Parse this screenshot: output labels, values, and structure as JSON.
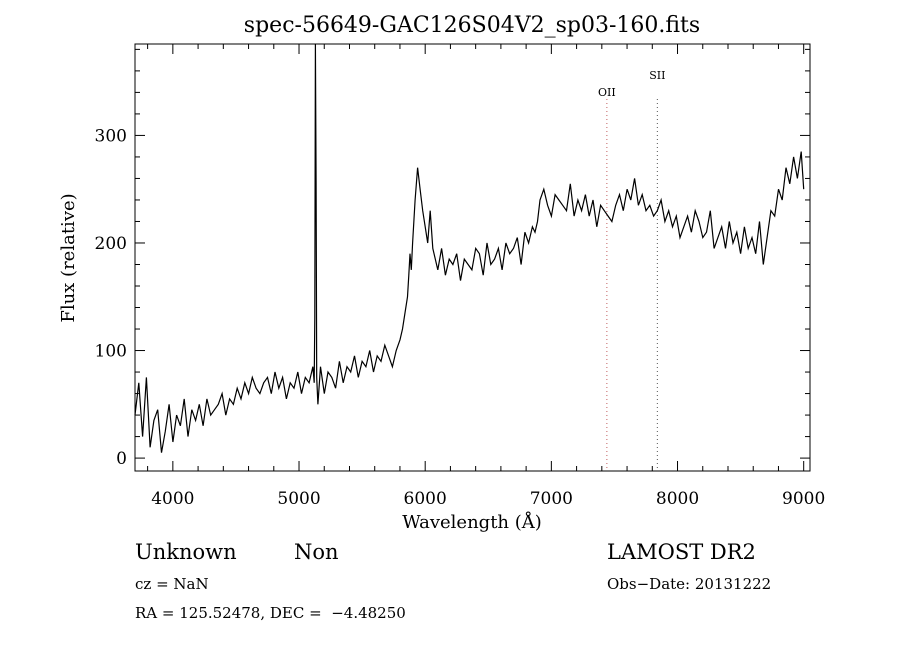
{
  "chart_data": {
    "type": "line",
    "title": "spec-56649-GAC126S04V2_sp03-160.fits",
    "xlabel": "Wavelength (Å)",
    "ylabel": "Flux (relative)",
    "xlim": [
      3700,
      9050
    ],
    "ylim": [
      -12,
      385
    ],
    "x_ticks": [
      "4000",
      "5000",
      "6000",
      "7000",
      "8000",
      "9000"
    ],
    "y_ticks": [
      "0",
      "100",
      "200",
      "300"
    ],
    "lines": [
      {
        "name": "OII",
        "x": 7440
      },
      {
        "name": "SII",
        "x": 7840
      }
    ],
    "series": [
      {
        "x": [
          3700,
          3730,
          3760,
          3790,
          3820,
          3850,
          3880,
          3910,
          3940,
          3970,
          4000,
          4030,
          4060,
          4090,
          4120,
          4150,
          4180,
          4210,
          4240,
          4270,
          4300,
          4330,
          4360,
          4390,
          4420,
          4450,
          4480,
          4510,
          4540,
          4570,
          4600,
          4630,
          4660,
          4690,
          4720,
          4750,
          4780,
          4810,
          4840,
          4870,
          4900,
          4930,
          4960,
          4990,
          5020,
          5050,
          5080,
          5110,
          5120,
          5125,
          5130,
          5135,
          5140,
          5150,
          5170,
          5200,
          5230,
          5260,
          5290,
          5320,
          5350,
          5380,
          5410,
          5440,
          5470,
          5500,
          5530,
          5560,
          5590,
          5620,
          5650,
          5680,
          5710,
          5740,
          5770,
          5800,
          5820,
          5840,
          5860,
          5870,
          5880,
          5890,
          5900,
          5920,
          5940,
          5960,
          5980,
          6000,
          6020,
          6040,
          6060,
          6080,
          6100,
          6130,
          6160,
          6190,
          6220,
          6250,
          6280,
          6310,
          6340,
          6370,
          6400,
          6430,
          6460,
          6490,
          6520,
          6550,
          6580,
          6610,
          6640,
          6670,
          6700,
          6730,
          6760,
          6790,
          6820,
          6850,
          6870,
          6890,
          6910,
          6940,
          6970,
          7000,
          7030,
          7060,
          7090,
          7120,
          7150,
          7180,
          7210,
          7240,
          7270,
          7300,
          7330,
          7360,
          7390,
          7420,
          7450,
          7480,
          7510,
          7540,
          7570,
          7600,
          7630,
          7660,
          7690,
          7720,
          7750,
          7780,
          7810,
          7840,
          7870,
          7900,
          7930,
          7960,
          7990,
          8020,
          8050,
          8080,
          8110,
          8140,
          8170,
          8200,
          8230,
          8260,
          8290,
          8320,
          8350,
          8380,
          8410,
          8440,
          8470,
          8500,
          8530,
          8560,
          8590,
          8620,
          8650,
          8680,
          8710,
          8740,
          8770,
          8800,
          8830,
          8860,
          8890,
          8920,
          8950,
          8980,
          9000
        ],
        "y": [
          40,
          70,
          20,
          75,
          10,
          35,
          45,
          5,
          25,
          50,
          15,
          40,
          30,
          55,
          20,
          45,
          35,
          50,
          30,
          55,
          40,
          45,
          50,
          60,
          40,
          55,
          50,
          65,
          55,
          70,
          60,
          75,
          65,
          60,
          70,
          75,
          60,
          80,
          65,
          75,
          55,
          70,
          65,
          80,
          60,
          75,
          70,
          85,
          70,
          130,
          385,
          256,
          75,
          50,
          85,
          60,
          80,
          75,
          65,
          90,
          70,
          85,
          80,
          95,
          75,
          90,
          85,
          100,
          80,
          95,
          90,
          105,
          95,
          85,
          100,
          110,
          120,
          135,
          150,
          170,
          190,
          175,
          200,
          240,
          270,
          250,
          230,
          215,
          200,
          230,
          195,
          185,
          175,
          195,
          170,
          185,
          180,
          190,
          165,
          185,
          180,
          175,
          195,
          190,
          170,
          200,
          180,
          185,
          195,
          175,
          200,
          190,
          195,
          205,
          180,
          210,
          200,
          215,
          210,
          220,
          240,
          250,
          235,
          225,
          245,
          240,
          235,
          230,
          255,
          225,
          240,
          230,
          245,
          225,
          240,
          215,
          235,
          230,
          225,
          220,
          235,
          245,
          230,
          250,
          240,
          260,
          235,
          245,
          230,
          235,
          225,
          230,
          240,
          220,
          230,
          215,
          225,
          205,
          215,
          225,
          210,
          230,
          220,
          205,
          210,
          230,
          195,
          205,
          215,
          195,
          220,
          200,
          210,
          190,
          215,
          195,
          205,
          190,
          220,
          180,
          205,
          230,
          225,
          250,
          240,
          270,
          255,
          280,
          260,
          285,
          250
        ]
      }
    ]
  },
  "info": {
    "class_text": "Unknown",
    "subclass_text": "Non",
    "cz_text": "cz = NaN",
    "coords_text": "RA = 125.52478, DEC =  −4.48250",
    "survey_text": "LAMOST DR2",
    "obsdate_text": "Obs−Date: 20131222"
  },
  "colors": {
    "spectrum": "#000000",
    "oii_line": "#c06060",
    "sii_line": "#555555",
    "axes": "#000000"
  }
}
